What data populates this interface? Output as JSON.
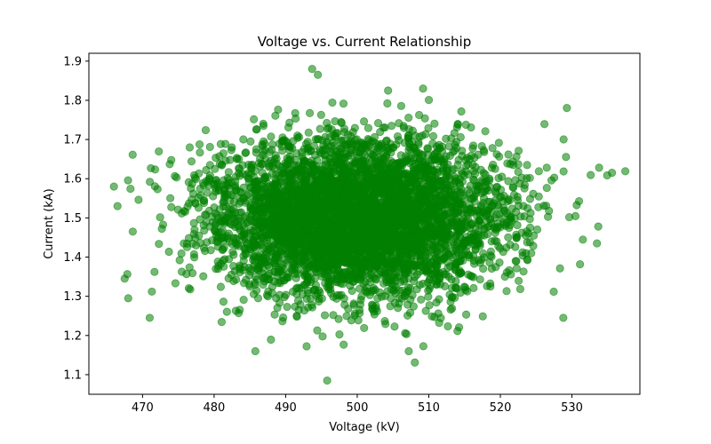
{
  "chart_data": {
    "type": "scatter",
    "title": "Voltage vs. Current Relationship",
    "xlabel": "Voltage (kV)",
    "ylabel": "Current (kA)",
    "xlim": [
      462.5,
      539.5
    ],
    "ylim": [
      1.05,
      1.92
    ],
    "x_ticks": [
      470,
      480,
      490,
      500,
      510,
      520,
      530
    ],
    "y_ticks": [
      1.1,
      1.2,
      1.3,
      1.4,
      1.5,
      1.6,
      1.7,
      1.8,
      1.9
    ],
    "grid": false,
    "legend": "none",
    "marker_color": "#008000",
    "marker_alpha": 0.55,
    "point_count": 5000,
    "distribution": {
      "x_mean": 500,
      "x_std": 10,
      "y_mean": 1.5,
      "y_std": 0.1
    },
    "notable_points": [
      {
        "x": 466.0,
        "y": 1.58
      },
      {
        "x": 466.5,
        "y": 1.53
      },
      {
        "x": 467.5,
        "y": 1.345
      },
      {
        "x": 468.0,
        "y": 1.295
      },
      {
        "x": 471.0,
        "y": 1.245
      },
      {
        "x": 493.7,
        "y": 1.88
      },
      {
        "x": 494.5,
        "y": 1.865
      },
      {
        "x": 495.8,
        "y": 1.085
      },
      {
        "x": 507.2,
        "y": 1.16
      },
      {
        "x": 509.2,
        "y": 1.83
      },
      {
        "x": 533.8,
        "y": 1.628
      },
      {
        "x": 535.6,
        "y": 1.615
      },
      {
        "x": 533.5,
        "y": 1.435
      },
      {
        "x": 528.8,
        "y": 1.245
      }
    ]
  }
}
